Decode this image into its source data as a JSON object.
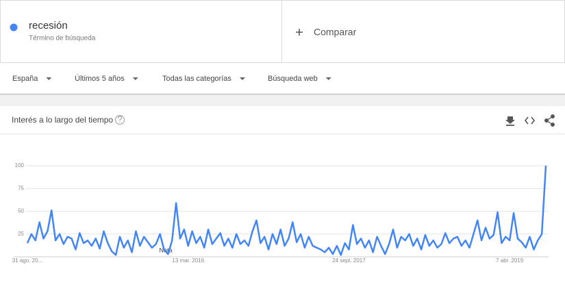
{
  "search": {
    "term": "recesión",
    "term_type": "Término de búsqueda",
    "compare": "Comparar"
  },
  "filters": [
    "España",
    "Últimos 5 años",
    "Todas las categorías",
    "Búsqueda web"
  ],
  "chart_data": {
    "type": "line",
    "title": "Interés a lo largo del tiempo",
    "note": "Nota",
    "color": "#4285f4",
    "categories": [
      "31 ago. 20...",
      null,
      null,
      null,
      null,
      null,
      null,
      null,
      null,
      null,
      null,
      null,
      null,
      null,
      null,
      null,
      null,
      null,
      null,
      null,
      null,
      null,
      null,
      null,
      null,
      null,
      null,
      null,
      null,
      null,
      null,
      null,
      null,
      null,
      null,
      null,
      null,
      null,
      null,
      null,
      "13 mar. 2016",
      null,
      null,
      null,
      null,
      null,
      null,
      null,
      null,
      null,
      null,
      null,
      null,
      null,
      null,
      null,
      null,
      null,
      null,
      null,
      null,
      null,
      null,
      null,
      null,
      null,
      null,
      null,
      null,
      null,
      null,
      null,
      null,
      null,
      null,
      null,
      null,
      null,
      null,
      null,
      "24 sept. 2017",
      null,
      null,
      null,
      null,
      null,
      null,
      null,
      null,
      null,
      null,
      null,
      null,
      null,
      null,
      null,
      null,
      null,
      null,
      null,
      null,
      null,
      null,
      null,
      null,
      null,
      null,
      null,
      null,
      null,
      null,
      null,
      null,
      null,
      null,
      null,
      null,
      null,
      null,
      null,
      "7 abr. 2019",
      null,
      null,
      null,
      null,
      null,
      null,
      null,
      null,
      null
    ],
    "values": [
      15,
      25,
      18,
      38,
      20,
      28,
      51,
      18,
      25,
      14,
      22,
      20,
      8,
      26,
      15,
      18,
      12,
      20,
      9,
      28,
      15,
      6,
      2,
      22,
      10,
      18,
      5,
      28,
      12,
      22,
      16,
      10,
      14,
      25,
      8,
      3,
      18,
      59,
      20,
      30,
      12,
      28,
      15,
      22,
      10,
      30,
      14,
      20,
      26,
      12,
      20,
      10,
      25,
      14,
      18,
      12,
      28,
      40,
      15,
      22,
      8,
      25,
      14,
      30,
      12,
      20,
      38,
      16,
      25,
      10,
      22,
      12,
      10,
      8,
      5,
      10,
      3,
      12,
      2,
      15,
      8,
      35,
      14,
      20,
      10,
      18,
      5,
      22,
      12,
      3,
      14,
      30,
      10,
      22,
      18,
      25,
      12,
      20,
      8,
      24,
      12,
      18,
      10,
      14,
      26,
      15,
      20,
      22,
      12,
      18,
      10,
      25,
      40,
      18,
      32,
      20,
      24,
      49,
      15,
      22,
      18,
      48,
      20,
      16,
      10,
      22,
      8,
      18,
      25,
      100
    ],
    "ylim": [
      0,
      100
    ],
    "yticks": [
      25,
      50,
      75,
      100
    ],
    "grid": true
  }
}
